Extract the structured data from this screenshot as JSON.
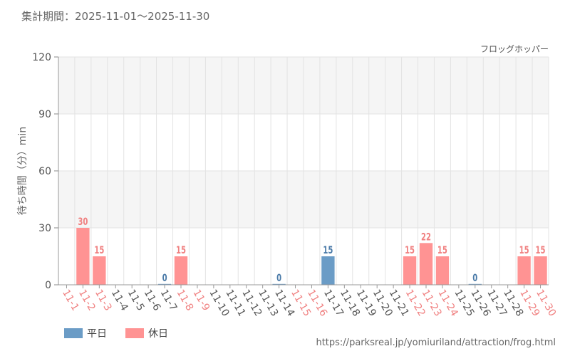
{
  "header": {
    "period": "集計期間：2025-11-01～2025-11-30",
    "attraction": "フロッグホッパー"
  },
  "footer": {
    "source": "https://parksreal.jp/yomiuriland/attraction/frog.html"
  },
  "legend": {
    "weekday": "平日",
    "holiday": "休日"
  },
  "colors": {
    "weekday": "#6b9cc6",
    "holiday": "#ff9393",
    "weekday_label": "#4a7aa8",
    "holiday_label": "#f08080",
    "band": "#f5f5f5",
    "grid": "#e3e3e3"
  },
  "chart_data": {
    "type": "bar",
    "title": "",
    "xlabel": "",
    "ylabel": "待ち時間（分）min",
    "ylim": [
      0,
      120
    ],
    "yticks": [
      "0",
      "30",
      "60",
      "90",
      "120"
    ],
    "categories": [
      "11-1",
      "11-2",
      "11-3",
      "11-4",
      "11-5",
      "11-6",
      "11-7",
      "11-8",
      "11-9",
      "11-10",
      "11-11",
      "11-12",
      "11-13",
      "11-14",
      "11-15",
      "11-16",
      "11-17",
      "11-18",
      "11-19",
      "11-20",
      "11-21",
      "11-22",
      "11-23",
      "11-24",
      "11-25",
      "11-26",
      "11-27",
      "11-28",
      "11-29",
      "11-30"
    ],
    "day_type": [
      "holiday",
      "holiday",
      "holiday",
      "weekday",
      "weekday",
      "weekday",
      "weekday",
      "holiday",
      "holiday",
      "weekday",
      "weekday",
      "weekday",
      "weekday",
      "weekday",
      "holiday",
      "holiday",
      "weekday",
      "weekday",
      "weekday",
      "weekday",
      "weekday",
      "holiday",
      "holiday",
      "holiday",
      "weekday",
      "weekday",
      "weekday",
      "weekday",
      "holiday",
      "holiday"
    ],
    "values": [
      null,
      30,
      15,
      null,
      null,
      null,
      0,
      15,
      null,
      null,
      null,
      null,
      null,
      0,
      null,
      null,
      15,
      null,
      null,
      null,
      null,
      15,
      22,
      15,
      null,
      0,
      null,
      null,
      15,
      15
    ],
    "data_labels": [
      "",
      "30",
      "15",
      "",
      "",
      "",
      "0",
      "15",
      "",
      "",
      "",
      "",
      "",
      "0",
      "",
      "",
      "15",
      "",
      "",
      "",
      "",
      "15",
      "22",
      "15",
      "",
      "0",
      "",
      "",
      "15",
      "15"
    ]
  }
}
